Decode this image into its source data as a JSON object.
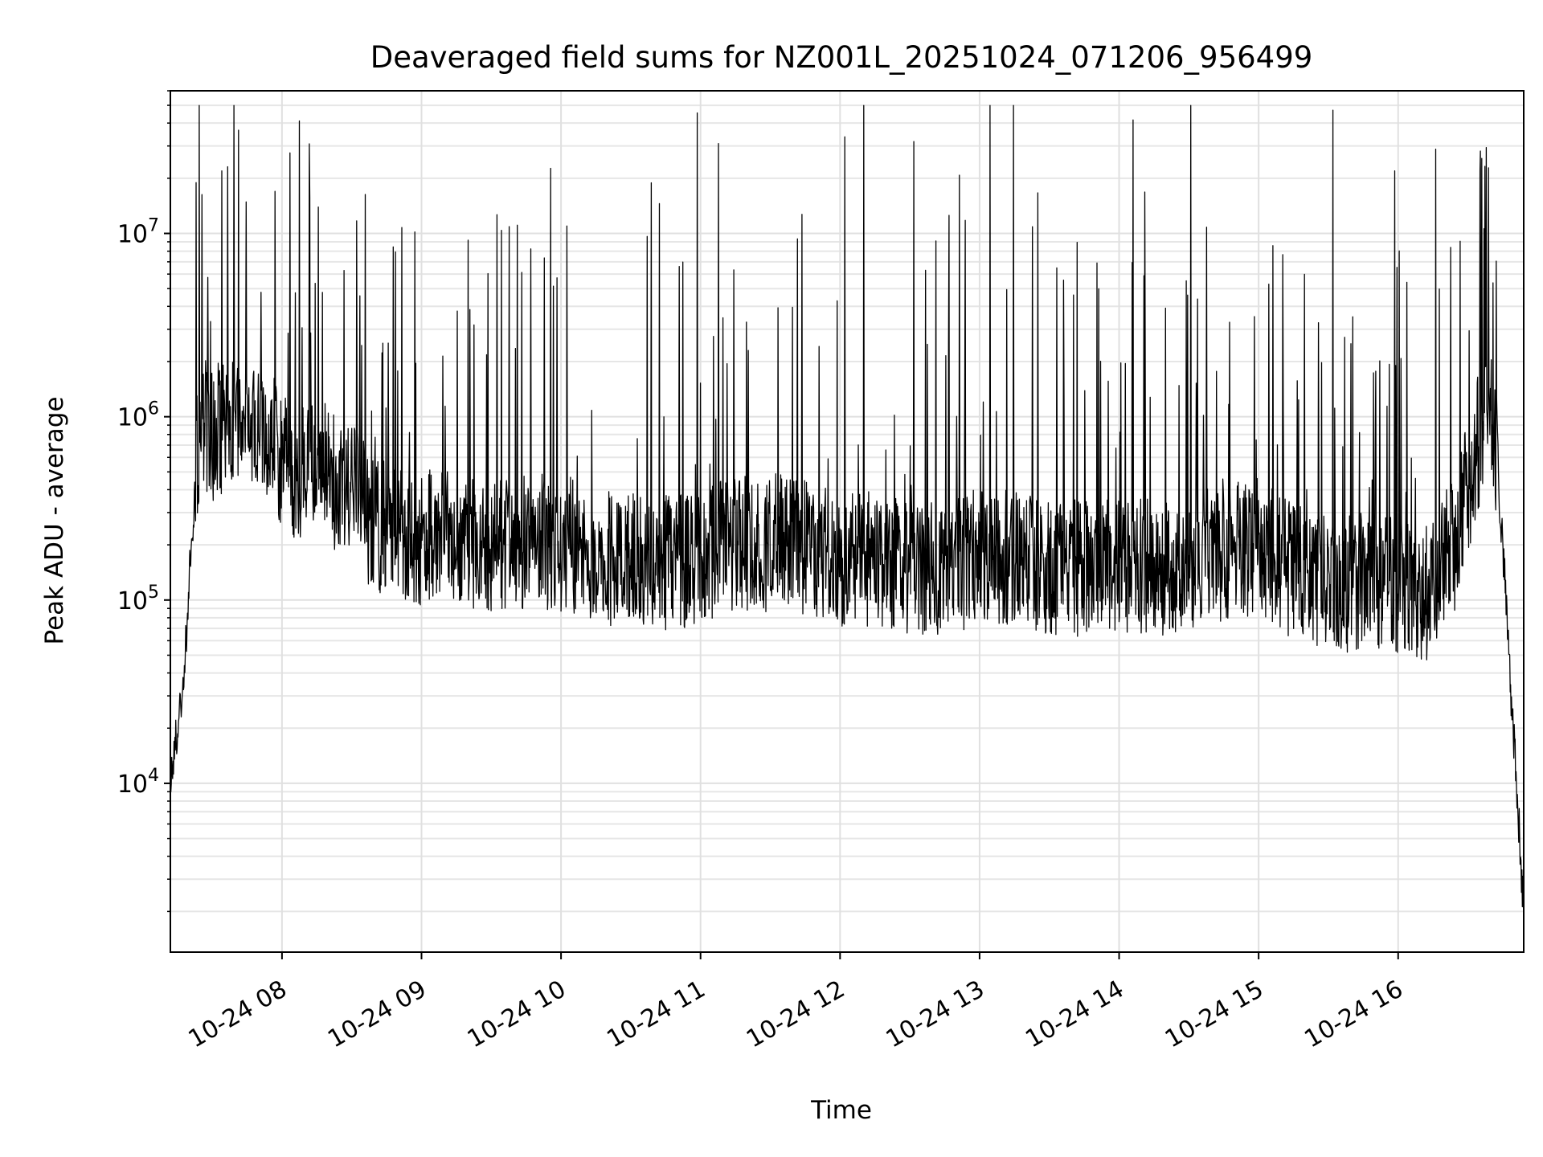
{
  "chart_data": {
    "type": "line",
    "title": "Deaveraged field sums for NZ001L_20251024_071206_956499",
    "xlabel": "Time",
    "ylabel": "Peak ADU - average",
    "yscale": "log",
    "grid": true,
    "legend": "none",
    "x_range_hours": [
      7.2,
      16.9
    ],
    "ylim": [
      1200,
      60000000
    ],
    "x_ticks": [
      {
        "value": 8,
        "label": "10-24 08"
      },
      {
        "value": 9,
        "label": "10-24 09"
      },
      {
        "value": 10,
        "label": "10-24 10"
      },
      {
        "value": 11,
        "label": "10-24 11"
      },
      {
        "value": 12,
        "label": "10-24 12"
      },
      {
        "value": 13,
        "label": "10-24 13"
      },
      {
        "value": 14,
        "label": "10-24 14"
      },
      {
        "value": 15,
        "label": "10-24 15"
      },
      {
        "value": 16,
        "label": "10-24 16"
      }
    ],
    "y_ticks": [
      {
        "value": 10000,
        "base": "10",
        "exp": "4"
      },
      {
        "value": 100000,
        "base": "10",
        "exp": "5"
      },
      {
        "value": 1000000,
        "base": "10",
        "exp": "6"
      },
      {
        "value": 10000000,
        "base": "10",
        "exp": "7"
      }
    ],
    "series": [
      {
        "color": "#000000",
        "x": [
          7.2,
          7.25,
          7.3,
          7.35,
          7.4,
          7.45,
          7.5,
          7.6,
          7.7,
          7.8,
          7.9,
          8.0,
          8.1,
          8.2,
          8.3,
          8.4,
          8.5,
          8.6,
          8.7,
          8.8,
          8.9,
          9.0,
          9.2,
          9.4,
          9.6,
          9.8,
          10.0,
          10.2,
          10.4,
          10.6,
          10.8,
          11.0,
          11.2,
          11.4,
          11.6,
          11.8,
          12.0,
          12.2,
          12.4,
          12.6,
          12.8,
          13.0,
          13.2,
          13.4,
          13.6,
          13.8,
          14.0,
          14.2,
          14.4,
          14.6,
          14.8,
          15.0,
          15.2,
          15.4,
          15.6,
          15.8,
          16.0,
          16.2,
          16.4,
          16.5,
          16.6,
          16.65,
          16.7,
          16.75,
          16.8,
          16.85,
          16.9
        ],
        "y": [
          9000,
          20000,
          40000,
          200000,
          700000,
          900000,
          800000,
          900000,
          1000000,
          900000,
          800000,
          600000,
          500000,
          500000,
          600000,
          400000,
          400000,
          300000,
          250000,
          250000,
          220000,
          220000,
          220000,
          200000,
          200000,
          220000,
          200000,
          180000,
          160000,
          160000,
          160000,
          170000,
          200000,
          200000,
          210000,
          190000,
          170000,
          170000,
          160000,
          150000,
          150000,
          180000,
          170000,
          160000,
          150000,
          150000,
          150000,
          150000,
          150000,
          170000,
          180000,
          200000,
          150000,
          130000,
          120000,
          130000,
          120000,
          110000,
          200000,
          400000,
          900000,
          1000000,
          700000,
          200000,
          40000,
          10000,
          2000
        ]
      }
    ]
  }
}
